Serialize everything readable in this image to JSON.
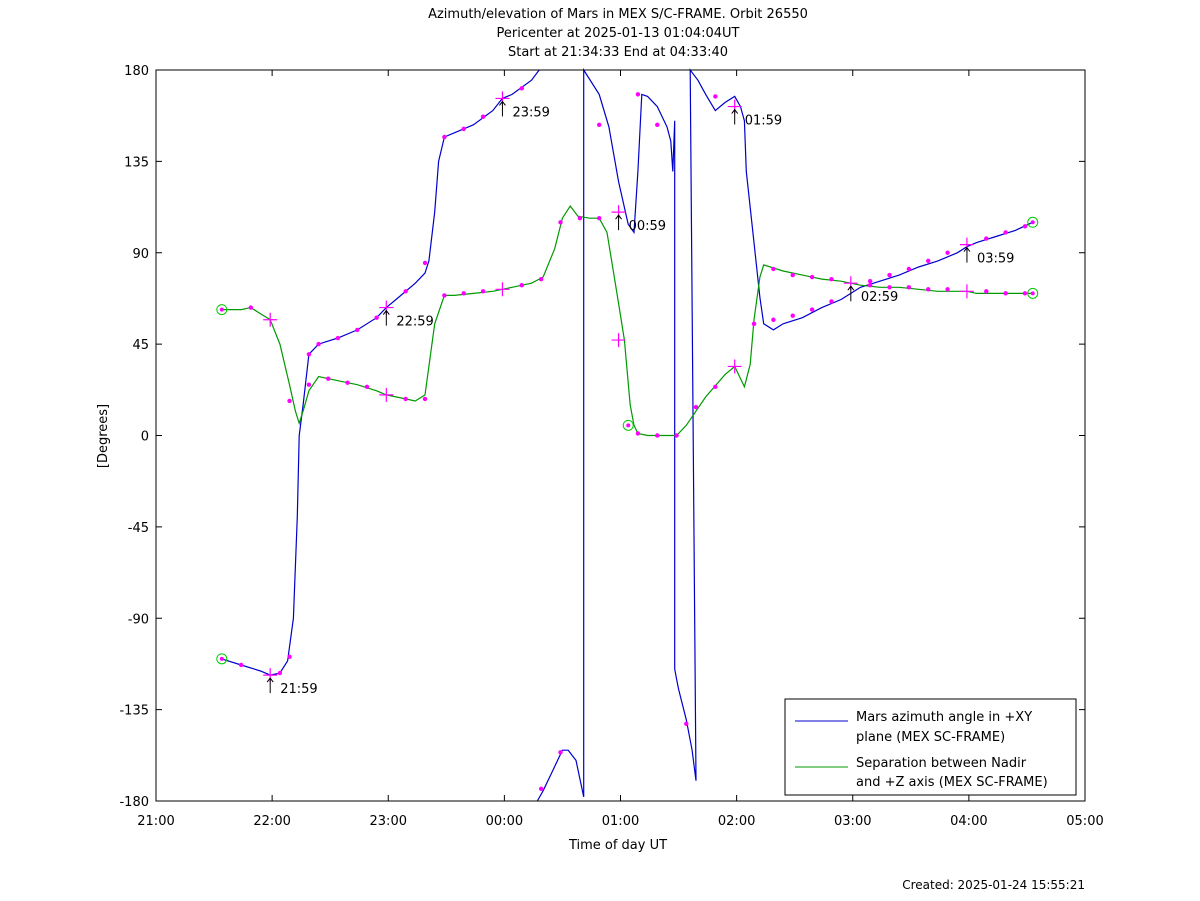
{
  "chart_data": {
    "type": "line",
    "title_lines": [
      "Azimuth/elevation of Mars in MEX S/C-FRAME.  Orbit 26550",
      "Pericenter at 2025-01-13 01:04:04UT",
      "Start at 21:34:33 End at 04:33:40"
    ],
    "xlabel": "Time of day UT",
    "ylabel": "[Degrees]",
    "xlim": [
      "21:00",
      "05:00"
    ],
    "ylim": [
      -180,
      180
    ],
    "x_ticks": [
      "21:00",
      "22:00",
      "23:00",
      "00:00",
      "01:00",
      "02:00",
      "03:00",
      "04:00",
      "05:00"
    ],
    "y_ticks": [
      "180",
      "135",
      "90",
      "45",
      "0",
      "-45",
      "-90",
      "-135",
      "-180"
    ],
    "y_tick_values": [
      180,
      135,
      90,
      45,
      0,
      -45,
      -90,
      -135,
      -180
    ],
    "legend_position": "bottom-right",
    "footer": "Created: 2025-01-24 15:55:21",
    "series": [
      {
        "name": "Mars azimuth angle in +XY plane (MEX SC-FRAME)",
        "legend_lines": [
          "Mars azimuth angle in +XY",
          "plane (MEX SC-FRAME)"
        ],
        "color": "#0000cc",
        "points": [
          [
            "21:34",
            -110
          ],
          [
            "21:44",
            -113
          ],
          [
            "21:54",
            -116
          ],
          [
            "21:59",
            -118
          ],
          [
            "22:04",
            -117
          ],
          [
            "22:08",
            -111
          ],
          [
            "22:11",
            -90
          ],
          [
            "22:13",
            -40
          ],
          [
            "22:14",
            0
          ],
          [
            "22:16",
            15
          ],
          [
            "22:19",
            40
          ],
          [
            "22:24",
            45
          ],
          [
            "22:34",
            48
          ],
          [
            "22:44",
            52
          ],
          [
            "22:54",
            58
          ],
          [
            "22:59",
            63
          ],
          [
            "23:04",
            67
          ],
          [
            "23:14",
            75
          ],
          [
            "23:19",
            80
          ],
          [
            "23:21",
            86
          ],
          [
            "23:24",
            110
          ],
          [
            "23:26",
            135
          ],
          [
            "23:29",
            147
          ],
          [
            "23:34",
            149
          ],
          [
            "23:44",
            153
          ],
          [
            "23:54",
            160
          ],
          [
            "23:59",
            166
          ],
          [
            "24:04",
            168
          ],
          [
            "24:14",
            175
          ],
          [
            "24:18",
            180
          ],
          "break",
          [
            "24:17",
            -180
          ],
          [
            "24:20",
            -175
          ],
          [
            "24:25",
            -165
          ],
          [
            "24:30",
            -155
          ],
          [
            "24:33",
            -155
          ],
          [
            "24:37",
            -160
          ],
          [
            "24:41",
            -178
          ],
          [
            "24:41",
            180
          ],
          [
            "24:49",
            168
          ],
          [
            "24:54",
            152
          ],
          [
            "24:59",
            125
          ],
          [
            "25:04",
            104
          ],
          [
            "25:07",
            100
          ],
          [
            "25:09",
            130
          ],
          [
            "25:11",
            168
          ],
          [
            "25:14",
            167
          ],
          [
            "25:19",
            162
          ],
          [
            "25:24",
            152
          ],
          [
            "25:26",
            145
          ],
          [
            "25:27",
            130
          ],
          [
            "25:28",
            155
          ],
          [
            "25:28",
            -115
          ],
          [
            "25:29",
            -120
          ],
          [
            "25:30",
            -125
          ],
          [
            "25:34",
            -140
          ],
          [
            "25:37",
            -155
          ],
          [
            "25:39",
            -170
          ],
          [
            "25:36",
            180
          ],
          [
            "25:40",
            175
          ],
          [
            "25:44",
            168
          ],
          [
            "25:49",
            160
          ],
          [
            "25:54",
            164
          ],
          [
            "25:59",
            167
          ],
          [
            "26:02",
            162
          ],
          [
            "26:04",
            155
          ],
          [
            "26:05",
            130
          ],
          [
            "26:09",
            95
          ],
          [
            "26:12",
            68
          ],
          [
            "26:14",
            55
          ],
          [
            "26:19",
            52
          ],
          [
            "26:24",
            55
          ],
          [
            "26:34",
            58
          ],
          [
            "26:44",
            63
          ],
          [
            "26:54",
            67
          ],
          [
            "26:59",
            70
          ],
          [
            "27:04",
            73
          ],
          [
            "27:14",
            76
          ],
          [
            "27:24",
            79
          ],
          [
            "27:34",
            83
          ],
          [
            "27:44",
            86
          ],
          [
            "27:54",
            90
          ],
          [
            "27:59",
            93
          ],
          [
            "28:04",
            95
          ],
          [
            "28:14",
            98
          ],
          [
            "28:24",
            101
          ],
          [
            "28:33",
            105
          ]
        ]
      },
      {
        "name": "Separation between Nadir and +Z axis (MEX SC-FRAME)",
        "legend_lines": [
          "Separation between Nadir",
          "and +Z axis (MEX SC-FRAME)"
        ],
        "color": "#009900",
        "points": [
          [
            "21:34",
            62
          ],
          [
            "21:44",
            62
          ],
          [
            "21:49",
            63
          ],
          [
            "21:54",
            60
          ],
          [
            "21:59",
            57
          ],
          [
            "22:04",
            45
          ],
          [
            "22:09",
            25
          ],
          [
            "22:12",
            12
          ],
          [
            "22:14",
            6
          ],
          [
            "22:16",
            12
          ],
          [
            "22:19",
            22
          ],
          [
            "22:24",
            29
          ],
          [
            "22:34",
            27
          ],
          [
            "22:44",
            25
          ],
          [
            "22:54",
            22
          ],
          [
            "22:59",
            20
          ],
          [
            "23:04",
            19
          ],
          [
            "23:14",
            17
          ],
          [
            "23:19",
            20
          ],
          [
            "23:24",
            55
          ],
          [
            "23:29",
            69
          ],
          [
            "23:34",
            69
          ],
          [
            "23:44",
            70
          ],
          [
            "23:54",
            71
          ],
          [
            "23:59",
            72
          ],
          [
            "24:04",
            73
          ],
          [
            "24:14",
            75
          ],
          [
            "24:20",
            78
          ],
          [
            "24:26",
            92
          ],
          [
            "24:30",
            107
          ],
          [
            "24:34",
            113
          ],
          [
            "24:38",
            108
          ],
          [
            "24:44",
            107
          ],
          [
            "24:49",
            107
          ],
          [
            "24:53",
            100
          ],
          [
            "24:59",
            65
          ],
          [
            "25:02",
            47
          ],
          [
            "25:05",
            15
          ],
          [
            "25:07",
            5
          ],
          [
            "25:09",
            1
          ],
          [
            "25:14",
            0
          ],
          [
            "25:24",
            0
          ],
          [
            "25:29",
            0
          ],
          [
            "25:34",
            5
          ],
          [
            "25:44",
            19
          ],
          [
            "25:54",
            30
          ],
          [
            "25:59",
            34
          ],
          [
            "26:02",
            28
          ],
          [
            "26:04",
            24
          ],
          [
            "26:07",
            35
          ],
          [
            "26:09",
            57
          ],
          [
            "26:12",
            78
          ],
          [
            "26:14",
            84
          ],
          [
            "26:24",
            81
          ],
          [
            "26:34",
            79
          ],
          [
            "26:44",
            77
          ],
          [
            "26:54",
            76
          ],
          [
            "26:59",
            75
          ],
          [
            "27:04",
            74
          ],
          [
            "27:14",
            73
          ],
          [
            "27:24",
            73
          ],
          [
            "27:34",
            72
          ],
          [
            "27:44",
            71
          ],
          [
            "27:54",
            71
          ],
          [
            "27:59",
            71
          ],
          [
            "28:04",
            70
          ],
          [
            "28:14",
            70
          ],
          [
            "28:24",
            70
          ],
          [
            "28:33",
            70
          ]
        ]
      }
    ],
    "markers": {
      "dot_color": "#ff00ff",
      "start_end_circle_color": "#00cc00",
      "start_end_points": [
        [
          "21:34",
          -110
        ],
        [
          "21:34",
          62
        ],
        [
          "28:33",
          105
        ],
        [
          "28:33",
          70
        ],
        [
          "25:04",
          5
        ]
      ],
      "hourly_cross_points": [
        [
          "21:59",
          -118
        ],
        [
          "21:59",
          57
        ],
        [
          "22:59",
          63
        ],
        [
          "22:59",
          20
        ],
        [
          "23:59",
          166
        ],
        [
          "23:59",
          72
        ],
        [
          "24:59",
          110
        ],
        [
          "24:59",
          47
        ],
        [
          "25:59",
          162
        ],
        [
          "25:59",
          34
        ],
        [
          "26:59",
          75
        ],
        [
          "27:59",
          94
        ],
        [
          "27:59",
          71
        ]
      ],
      "dot_points": [
        [
          "21:44",
          -113
        ],
        [
          "22:04",
          -117
        ],
        [
          "22:09",
          -109
        ],
        [
          "22:19",
          40
        ],
        [
          "22:24",
          45
        ],
        [
          "22:34",
          48
        ],
        [
          "22:44",
          52
        ],
        [
          "22:54",
          58
        ],
        [
          "23:09",
          71
        ],
        [
          "23:19",
          85
        ],
        [
          "23:29",
          147
        ],
        [
          "23:39",
          151
        ],
        [
          "23:49",
          157
        ],
        [
          "24:09",
          171
        ],
        [
          "24:19",
          -174
        ],
        [
          "24:29",
          -156
        ],
        [
          "24:49",
          153
        ],
        [
          "25:09",
          168
        ],
        [
          "25:19",
          153
        ],
        [
          "25:34",
          -142
        ],
        [
          "25:49",
          167
        ],
        [
          "26:09",
          55
        ],
        [
          "26:19",
          57
        ],
        [
          "26:29",
          59
        ],
        [
          "26:39",
          62
        ],
        [
          "26:49",
          66
        ],
        [
          "27:09",
          76
        ],
        [
          "27:19",
          79
        ],
        [
          "27:29",
          82
        ],
        [
          "27:39",
          86
        ],
        [
          "27:49",
          90
        ],
        [
          "28:09",
          97
        ],
        [
          "28:19",
          100
        ],
        [
          "28:29",
          103
        ],
        [
          "21:49",
          63
        ],
        [
          "22:09",
          17
        ],
        [
          "22:19",
          25
        ],
        [
          "22:29",
          28
        ],
        [
          "22:39",
          26
        ],
        [
          "22:49",
          24
        ],
        [
          "23:09",
          18
        ],
        [
          "23:19",
          18
        ],
        [
          "23:29",
          69
        ],
        [
          "23:39",
          70
        ],
        [
          "23:49",
          71
        ],
        [
          "24:09",
          74
        ],
        [
          "24:19",
          77
        ],
        [
          "24:29",
          105
        ],
        [
          "24:39",
          107
        ],
        [
          "24:49",
          107
        ],
        [
          "25:09",
          1
        ],
        [
          "25:19",
          0
        ],
        [
          "25:29",
          0
        ],
        [
          "25:39",
          14
        ],
        [
          "25:49",
          24
        ],
        [
          "26:09",
          55
        ],
        [
          "26:19",
          82
        ],
        [
          "26:29",
          79
        ],
        [
          "26:39",
          78
        ],
        [
          "26:49",
          77
        ],
        [
          "27:09",
          74
        ],
        [
          "27:19",
          73
        ],
        [
          "27:29",
          73
        ],
        [
          "27:39",
          72
        ],
        [
          "27:49",
          72
        ],
        [
          "28:09",
          71
        ],
        [
          "28:19",
          70
        ],
        [
          "28:29",
          70
        ]
      ]
    },
    "hour_labels": [
      {
        "text": "21:59",
        "at": [
          "21:59",
          -118
        ]
      },
      {
        "text": "22:59",
        "at": [
          "22:59",
          63
        ]
      },
      {
        "text": "23:59",
        "at": [
          "23:59",
          166
        ]
      },
      {
        "text": "00:59",
        "at": [
          "24:59",
          110
        ]
      },
      {
        "text": "01:59",
        "at": [
          "25:59",
          162
        ]
      },
      {
        "text": "02:59",
        "at": [
          "26:59",
          75
        ]
      },
      {
        "text": "03:59",
        "at": [
          "27:59",
          94
        ]
      }
    ]
  }
}
